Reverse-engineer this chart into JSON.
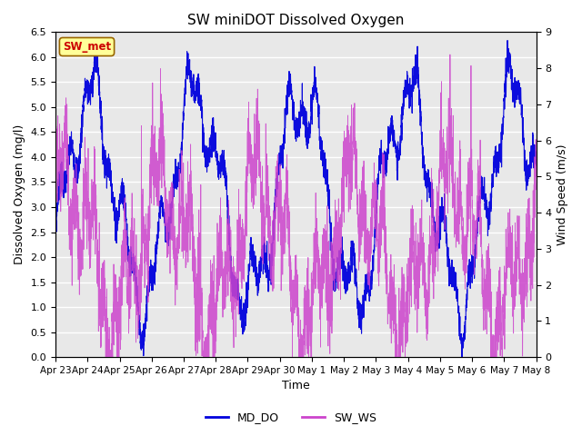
{
  "title": "SW miniDOT Dissolved Oxygen",
  "xlabel": "Time",
  "ylabel_left": "Dissolved Oxygen (mg/l)",
  "ylabel_right": "Wind Speed (m/s)",
  "ylim_left": [
    0.0,
    6.5
  ],
  "ylim_right": [
    0.0,
    9.0
  ],
  "yticks_left": [
    0.0,
    0.5,
    1.0,
    1.5,
    2.0,
    2.5,
    3.0,
    3.5,
    4.0,
    4.5,
    5.0,
    5.5,
    6.0,
    6.5
  ],
  "yticks_right": [
    0.0,
    1.0,
    2.0,
    3.0,
    4.0,
    5.0,
    6.0,
    7.0,
    8.0,
    9.0
  ],
  "color_do": "#0000dd",
  "color_ws": "#cc44cc",
  "legend_labels": [
    "MD_DO",
    "SW_WS"
  ],
  "annotation_text": "SW_met",
  "annotation_color": "#cc0000",
  "annotation_bg": "#ffff99",
  "background_color": "#e8e8e8",
  "grid_color": "#ffffff",
  "n_points": 3720,
  "figsize": [
    6.4,
    4.8
  ],
  "dpi": 100
}
